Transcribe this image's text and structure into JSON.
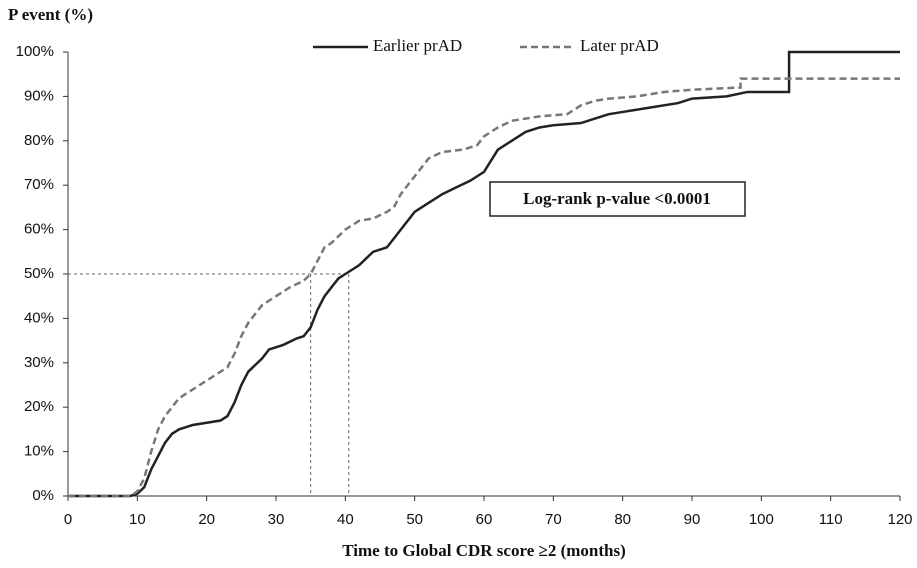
{
  "chart_data": {
    "type": "line",
    "title": "P event (%)",
    "x_label": "Time to Global CDR score ≥2 (months)",
    "annotation": "Log-rank p-value <0.0001",
    "xlim": [
      0,
      120
    ],
    "xticks": [
      0,
      10,
      20,
      30,
      40,
      50,
      60,
      70,
      80,
      90,
      100,
      110,
      120
    ],
    "ylim": [
      0,
      100
    ],
    "yticks": [
      {
        "value": 0,
        "label": "0%"
      },
      {
        "value": 10,
        "label": "10%"
      },
      {
        "value": 20,
        "label": "20%"
      },
      {
        "value": 30,
        "label": "30%"
      },
      {
        "value": 40,
        "label": "40%"
      },
      {
        "value": 50,
        "label": "50%"
      },
      {
        "value": 60,
        "label": "60%"
      },
      {
        "value": 70,
        "label": "70%"
      },
      {
        "value": 80,
        "label": "80%"
      },
      {
        "value": 90,
        "label": "90%"
      },
      {
        "value": 100,
        "label": "100%"
      }
    ],
    "grid": false,
    "reference_y": 50,
    "reference_x": [
      35,
      40.5
    ],
    "series": [
      {
        "name": "Earlier prAD",
        "color": "#222222",
        "dash": false,
        "x": [
          0,
          9,
          10,
          11,
          12,
          13,
          14,
          15,
          16,
          18,
          20,
          22,
          23,
          24,
          25,
          26,
          28,
          29,
          31,
          33,
          34,
          35,
          36,
          37,
          38,
          39,
          40,
          42,
          44,
          46,
          47,
          48,
          50,
          52,
          54,
          56,
          58,
          60,
          62,
          64,
          66,
          68,
          70,
          74,
          76,
          78,
          80,
          84,
          88,
          90,
          95,
          98,
          104,
          104,
          120
        ],
        "values": [
          0,
          0,
          0.5,
          2,
          6,
          9,
          12,
          14,
          15,
          16,
          16.5,
          17,
          18,
          21,
          25,
          28,
          31,
          33,
          34,
          35.5,
          36,
          38,
          42,
          45,
          47,
          49,
          50,
          52,
          55,
          56,
          58,
          60,
          64,
          66,
          68,
          69.5,
          71,
          73,
          78,
          80,
          82,
          83,
          83.5,
          84,
          85,
          86,
          86.5,
          87.5,
          88.5,
          89.5,
          90,
          91,
          91,
          100,
          100
        ]
      },
      {
        "name": "Later prAD",
        "color": "#777777",
        "dash": true,
        "x": [
          0,
          9,
          10,
          11,
          12,
          13,
          14,
          15,
          16,
          18,
          20,
          22,
          23,
          24,
          25,
          26,
          28,
          30,
          32,
          34,
          35,
          36,
          37,
          38,
          40,
          42,
          44,
          46,
          47,
          48,
          50,
          52,
          54,
          57,
          59,
          60,
          62,
          64,
          66,
          68,
          72,
          74,
          76,
          78,
          82,
          86,
          90,
          97,
          97,
          120
        ],
        "values": [
          0,
          0,
          1,
          4,
          10,
          15,
          18,
          20,
          22,
          24,
          26,
          28,
          29,
          32,
          36,
          39,
          43,
          45,
          47,
          48.5,
          50,
          53,
          56,
          57,
          60,
          62,
          62.5,
          64,
          65,
          68,
          72,
          76,
          77.5,
          78,
          79,
          81,
          83,
          84.5,
          85,
          85.5,
          86,
          88,
          89,
          89.5,
          90,
          91,
          91.5,
          92,
          94,
          94
        ]
      }
    ]
  }
}
